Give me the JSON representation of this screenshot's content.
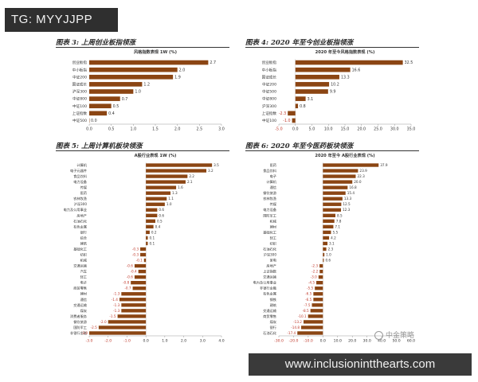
{
  "watermark_top": "TG: MYYJJPP",
  "watermark_bottom": "www.inclusionintthearts.com",
  "watermark_logo_text": "中金策略",
  "colors": {
    "bar": "#8B4513",
    "text": "#333333",
    "axis": "#999999"
  },
  "panels": {
    "p3": {
      "label": "图表 3: 上周创业板指领涨"
    },
    "p4": {
      "label": "图表 4: 2020 年至今创业板指领涨"
    },
    "p5": {
      "label": "图表 5: 上周计算机板块领涨"
    },
    "p6": {
      "label": "图表 6: 2020 年至今医药板块领涨"
    }
  },
  "chart_data": [
    {
      "id": "p3",
      "type": "bar",
      "orientation": "horizontal",
      "title": "风格指数表现 1W (%)",
      "categories": [
        "创业板指",
        "中小板指",
        "中证200",
        "国证成长",
        "沪深300",
        "中证800",
        "中证100",
        "上证指数",
        "中证500"
      ],
      "values": [
        2.7,
        2.0,
        1.9,
        1.2,
        1.0,
        0.7,
        0.5,
        0.4,
        0.0
      ],
      "xlim": [
        0.0,
        3.0
      ],
      "ticks": [
        0.0,
        0.5,
        1.0,
        1.5,
        2.0,
        2.5,
        3.0
      ],
      "decimals": 1
    },
    {
      "id": "p4",
      "type": "bar",
      "orientation": "horizontal",
      "title": "2020 年至今风格指数表现 (%)",
      "categories": [
        "创业板指",
        "中小板指",
        "国证成长",
        "中证200",
        "中证500",
        "中证800",
        "沪深300",
        "上证指数",
        "中证100"
      ],
      "values": [
        32.5,
        16.6,
        13.3,
        10.2,
        9.9,
        3.1,
        0.8,
        -2.3,
        -1.0
      ],
      "xlim": [
        -5.0,
        35.0
      ],
      "ticks": [
        -5.0,
        0.0,
        5.0,
        10.0,
        15.0,
        20.0,
        25.0,
        30.0,
        35.0
      ],
      "decimals": 1
    },
    {
      "id": "p5",
      "type": "bar",
      "orientation": "horizontal",
      "title": "A股行业表现 1W (%)",
      "categories": [
        "计算机",
        "电子元器件",
        "食品饮料",
        "电力设备",
        "传媒",
        "医药",
        "农林牧渔",
        "沪深300",
        "电力及公用事业",
        "房地产",
        "石油石化",
        "有色金属",
        "银行",
        "综合",
        "建筑",
        "基础化工",
        "纺织",
        "机械",
        "交通运输",
        "汽车",
        "轻工",
        "电子",
        "商贸零售",
        "建材",
        "通信",
        "交通运输",
        "煤炭",
        "消费者服务",
        "餐饮旅游",
        "国防军工",
        "非银行金融"
      ],
      "values": [
        3.5,
        3.2,
        2.2,
        2.1,
        1.6,
        1.3,
        1.1,
        1.0,
        0.6,
        0.6,
        0.5,
        0.4,
        0.2,
        0.1,
        0.1,
        -0.3,
        -0.3,
        -0.1,
        -0.6,
        -0.4,
        -0.6,
        -0.8,
        -0.7,
        -1.3,
        -1.4,
        -1.3,
        -1.3,
        -1.5,
        -2.0,
        -2.5,
        -3.0
      ],
      "xlim": [
        -3.0,
        4.0
      ],
      "ticks": [
        -3.0,
        -2.0,
        -1.0,
        0.0,
        1.0,
        2.0,
        3.0,
        4.0
      ],
      "decimals": 1
    },
    {
      "id": "p6",
      "type": "bar",
      "orientation": "horizontal",
      "title": "2020 年至今 A股行业表现 (%)",
      "categories": [
        "医药",
        "食品饮料",
        "电子",
        "计算机",
        "通信",
        "餐饮旅游",
        "农林牧渔",
        "传媒",
        "电力设备",
        "国防军工",
        "机械",
        "建材",
        "基础化工",
        "轻工",
        "纺织",
        "石油石化",
        "沪深300",
        "家电",
        "房地产",
        "上证指数",
        "交通运输",
        "电力及公用事业",
        "非银行金融",
        "有色金属",
        "钢铁",
        "建筑",
        "交通运输",
        "商贸零售",
        "煤炭",
        "银行",
        "石油石化"
      ],
      "values": [
        37.9,
        23.9,
        22.3,
        20.0,
        16.8,
        15.4,
        13.3,
        12.5,
        12.3,
        8.5,
        7.8,
        7.1,
        5.5,
        4.2,
        3.1,
        2.3,
        1.0,
        0.6,
        -2.3,
        -2.2,
        -3.0,
        -4.5,
        -5.5,
        -6.5,
        -6.5,
        -7.5,
        -8.5,
        -10.1,
        -13.2,
        -14.8,
        -17.4
      ],
      "xlim": [
        -30.0,
        60.0
      ],
      "ticks": [
        -30.0,
        -20.0,
        -10.0,
        0.0,
        10.0,
        20.0,
        30.0,
        40.0,
        50.0,
        60.0
      ],
      "decimals": 1
    }
  ]
}
